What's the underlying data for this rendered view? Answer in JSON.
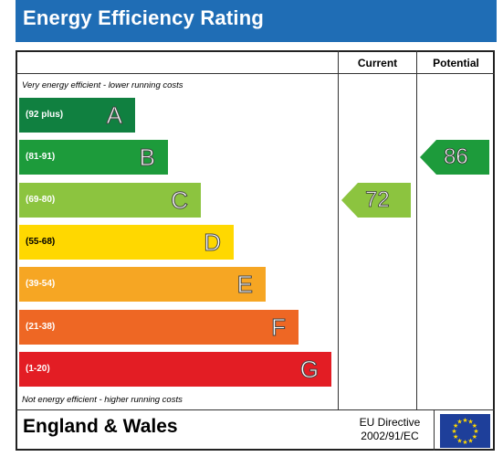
{
  "title": "Energy Efficiency Rating",
  "columns": {
    "current": "Current",
    "potential": "Potential"
  },
  "top_note": "Very energy efficient - lower running costs",
  "bottom_note": "Not energy efficient - higher running costs",
  "footer": {
    "region": "England & Wales",
    "directive_line1": "EU Directive",
    "directive_line2": "2002/91/EC"
  },
  "colors": {
    "title_bar": "#1f6db5",
    "eu_flag": "#1e3f9a",
    "eu_stars": "#ffd800"
  },
  "chart_data": {
    "type": "bar",
    "categories": [
      "A",
      "B",
      "C",
      "D",
      "E",
      "F",
      "G"
    ],
    "ranges": [
      "(92 plus)",
      "(81-91)",
      "(69-80)",
      "(55-68)",
      "(39-54)",
      "(21-38)",
      "(1-20)"
    ],
    "band_colors": [
      "#108040",
      "#1d9b3b",
      "#8cc43f",
      "#ffd800",
      "#f6a623",
      "#ee6724",
      "#e31d24"
    ],
    "current": {
      "value": 72,
      "band": "C",
      "color": "#8cc43f"
    },
    "potential": {
      "value": 86,
      "band": "B",
      "color": "#1d9b3b"
    }
  }
}
